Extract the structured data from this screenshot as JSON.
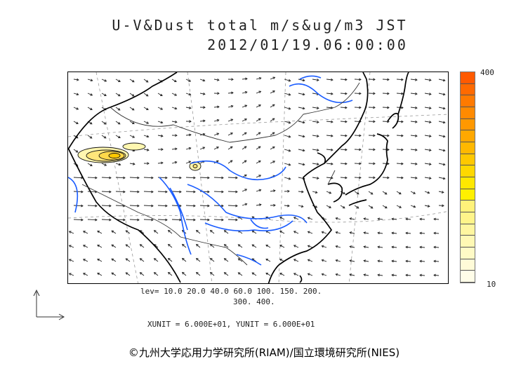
{
  "title_line1": "U-V&Dust total m/s&ug/m3 JST",
  "title_line2": "2012/01/19.06:00:00",
  "colorbar": {
    "max_label": "400",
    "min_label": "10",
    "colors": [
      "#ff5a00",
      "#ff6a00",
      "#ff7a00",
      "#ff8a00",
      "#ff9800",
      "#ffa800",
      "#ffb800",
      "#ffc800",
      "#ffd800",
      "#ffe800",
      "#fff000",
      "#fff27a",
      "#fff48a",
      "#fff6a0",
      "#fff8b4",
      "#fffac6",
      "#fffbd8",
      "#fffde8"
    ]
  },
  "levels_line1": "lev= 10.0 20.0 40.0 60.0 100. 150. 200.",
  "levels_line2": "300. 400.",
  "unit_line": "XUNIT = 6.000E+01, YUNIT = 6.000E+01",
  "copyright": "©九州大学応用力学研究所(RIAM)/国立環境研究所(NIES)",
  "map": {
    "coastline_color": "#000000",
    "river_color": "#1a5cff",
    "border_color": "#333333",
    "dust_contour_color": "#111111",
    "dust_fill": [
      "#fff7b0",
      "#ffe67a",
      "#ffd84a"
    ]
  }
}
